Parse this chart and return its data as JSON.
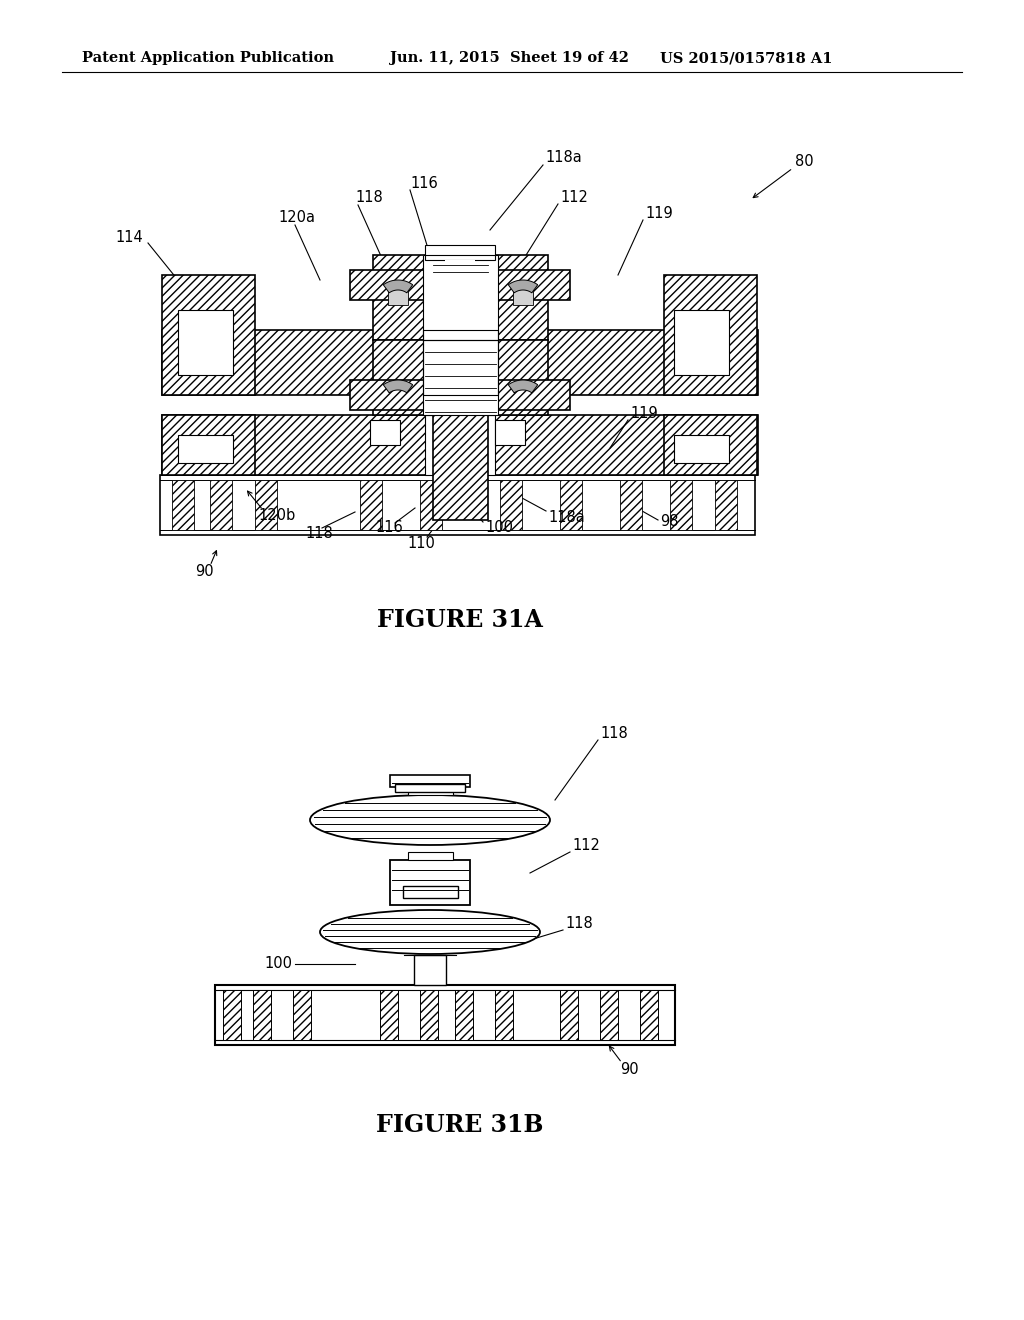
{
  "background_color": "#ffffff",
  "header_left": "Patent Application Publication",
  "header_mid": "Jun. 11, 2015  Sheet 19 of 42",
  "header_right": "US 2015/0157818 A1",
  "fig31a_title": "FIGURE 31A",
  "fig31b_title": "FIGURE 31B",
  "text_color": "#000000",
  "line_color": "#000000",
  "header_fontsize": 10.5,
  "label_fontsize": 10.5,
  "title_fontsize": 17
}
